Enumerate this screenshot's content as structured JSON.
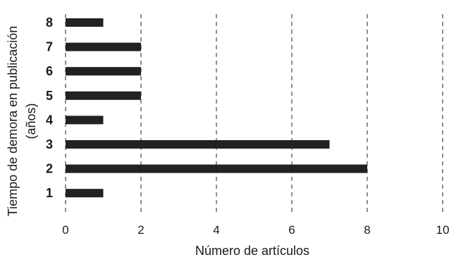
{
  "chart_data": {
    "type": "bar",
    "orientation": "horizontal",
    "categories": [
      "1",
      "2",
      "3",
      "4",
      "5",
      "6",
      "7",
      "8"
    ],
    "values": [
      1,
      8,
      7,
      1,
      2,
      2,
      2,
      1
    ],
    "xlabel": "Número de artículos",
    "ylabel_lines": [
      "Tiempo de demora en publicación",
      "(años)"
    ],
    "xlim": [
      0,
      10
    ],
    "xticks": [
      "0",
      "2",
      "4",
      "6",
      "8",
      "10"
    ],
    "grid": "vertical-dashed",
    "bar_color": "#222222"
  }
}
